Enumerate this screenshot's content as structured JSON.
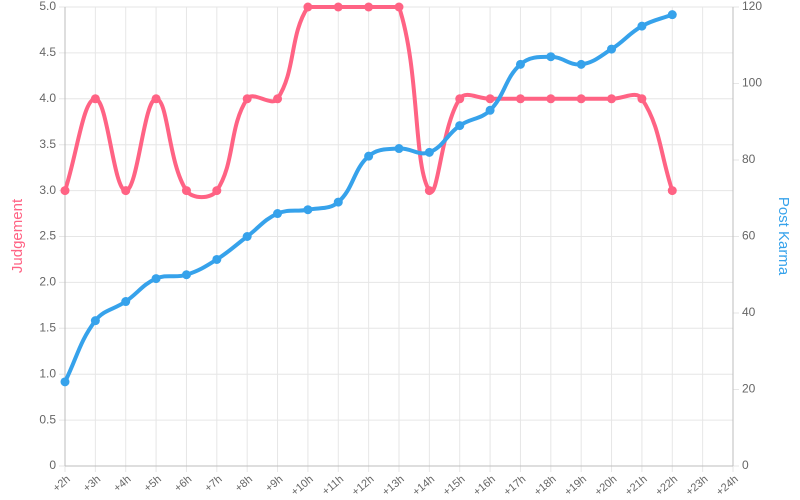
{
  "chart_data": {
    "type": "line",
    "categories": [
      "+2h",
      "+3h",
      "+4h",
      "+5h",
      "+6h",
      "+7h",
      "+8h",
      "+9h",
      "+10h",
      "+11h",
      "+12h",
      "+13h",
      "+14h",
      "+15h",
      "+16h",
      "+17h",
      "+18h",
      "+19h",
      "+20h",
      "+21h",
      "+22h",
      "+23h",
      "+24h"
    ],
    "series": [
      {
        "name": "Judgement",
        "color": "#ff6384",
        "axis": "y",
        "values": [
          3,
          4,
          3,
          4,
          3,
          3,
          4,
          4,
          5,
          5,
          5,
          5,
          3,
          4,
          4,
          4,
          4,
          4,
          4,
          4,
          3,
          null,
          null
        ]
      },
      {
        "name": "Post Karma",
        "color": "#36a2eb",
        "axis": "y2",
        "values": [
          22,
          38,
          43,
          49,
          50,
          54,
          60,
          66,
          67,
          69,
          81,
          83,
          82,
          89,
          93,
          105,
          107,
          105,
          109,
          115,
          118,
          null,
          null
        ]
      }
    ],
    "ylabel": "Judgement",
    "y2label": "Post Karma",
    "ylim": [
      0,
      5
    ],
    "yticks": [
      0,
      0.5,
      {
        "value": 1,
        "label": "1.0"
      },
      1.5,
      {
        "value": 2,
        "label": "2.0"
      },
      2.5,
      {
        "value": 3,
        "label": "3.0"
      },
      3.5,
      {
        "value": 4,
        "label": "4.0"
      },
      4.5,
      {
        "value": 5,
        "label": "5.0"
      }
    ],
    "y2lim": [
      0,
      120
    ],
    "y2ticks": [
      0,
      20,
      40,
      60,
      80,
      100,
      120
    ],
    "grid": true
  }
}
